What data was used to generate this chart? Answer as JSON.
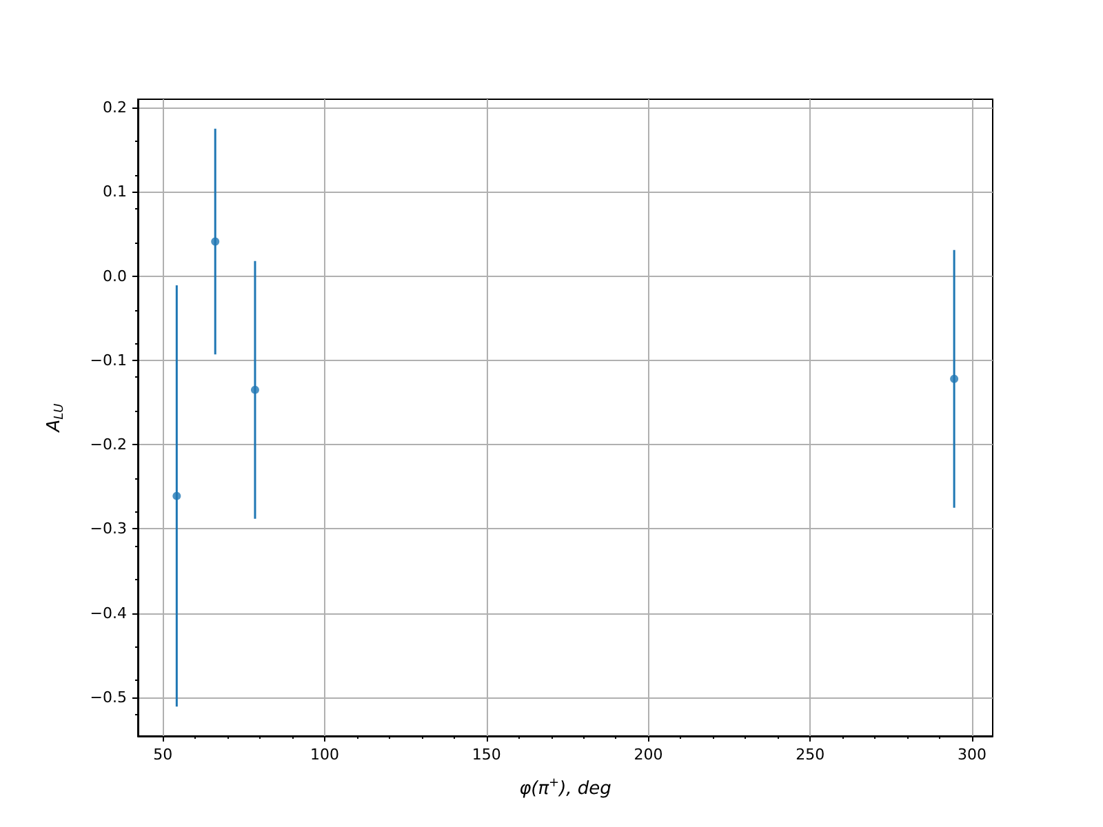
{
  "chart_data": {
    "type": "scatter",
    "xlabel": "φ(π$^{+}$), deg",
    "ylabel": "A$_{LU}$",
    "x": [
      54.3,
      66.2,
      78.5,
      294.5
    ],
    "values": [
      -0.261,
      0.041,
      -0.135,
      -0.122
    ],
    "errors": [
      0.25,
      0.134,
      0.153,
      0.153
    ],
    "color": "#1f77b4",
    "marker": "circle",
    "grid": true,
    "xlim": [
      42.3,
      306.4
    ],
    "xticks": [
      50,
      100,
      150,
      200,
      250,
      300
    ],
    "ylim": [
      -0.546,
      0.21
    ],
    "yticks": [
      {
        "value": -0.5,
        "label": "−0.5"
      },
      {
        "value": -0.4,
        "label": "−0.4"
      },
      {
        "value": -0.3,
        "label": "−0.3"
      },
      {
        "value": -0.2,
        "label": "−0.2"
      },
      {
        "value": -0.1,
        "label": "−0.1"
      },
      {
        "value": 0,
        "label": "0.0"
      },
      {
        "value": 0.1,
        "label": "0.1"
      },
      {
        "value": 0.2,
        "label": "0.2"
      }
    ]
  }
}
